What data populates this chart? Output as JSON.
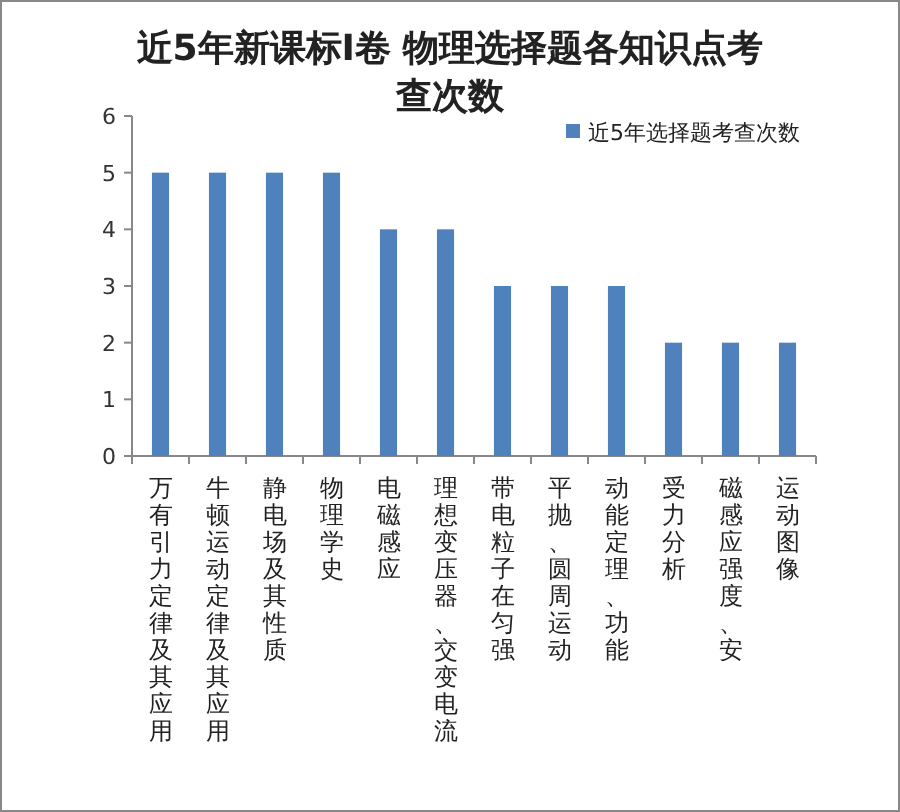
{
  "chart_data": {
    "type": "bar",
    "title": "近5年新课标Ⅰ卷 物理选择题各知识点考查次数",
    "categories": [
      "万有引力定律及其应用",
      "牛顿运动定律及其应用",
      "静电场及其性质",
      "物理学史",
      "电磁感应",
      "理想变压器、交变电流",
      "带电粒子在匀强",
      "平抛、圆周运动",
      "动能定理、功能",
      "受力分析",
      "磁感应强度、安",
      "运动图像"
    ],
    "series": [
      {
        "name": "近5年选择题考查次数",
        "color": "#4f81bd",
        "values": [
          5,
          5,
          5,
          5,
          4,
          4,
          3,
          3,
          3,
          2,
          2,
          2
        ]
      }
    ],
    "ylim": [
      0,
      6
    ],
    "yticks": [
      0,
      1,
      2,
      3,
      4,
      5,
      6
    ],
    "legend": "top right",
    "grid": false
  }
}
